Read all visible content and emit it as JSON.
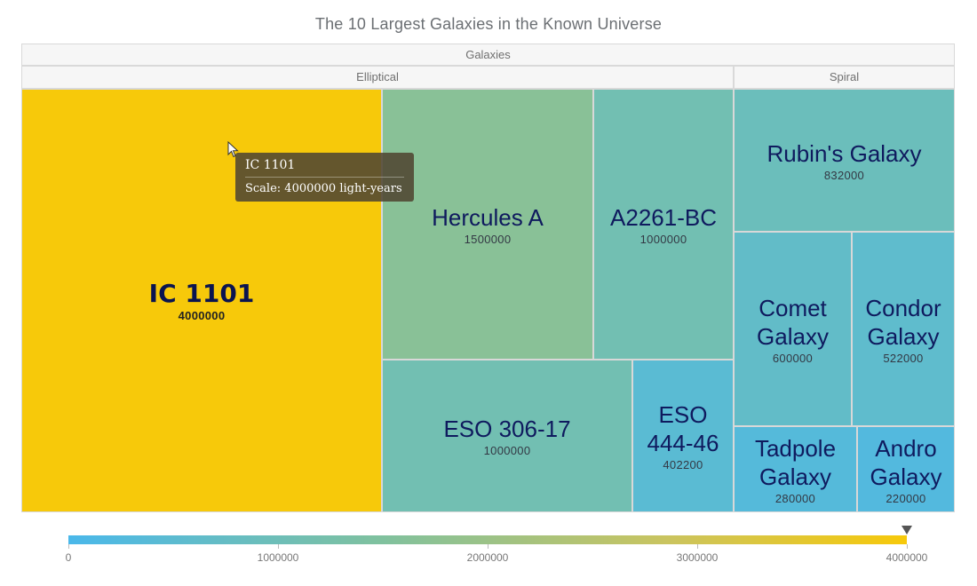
{
  "chart_data": {
    "type": "treemap",
    "title": "The 10 Largest Galaxies in the Known Universe",
    "root": "Galaxies",
    "groups": [
      {
        "name": "Elliptical",
        "items": [
          {
            "name": "IC 1101",
            "value": 4000000
          },
          {
            "name": "Hercules A",
            "value": 1500000
          },
          {
            "name": "A2261-BC",
            "value": 1000000
          },
          {
            "name": "ESO 306-17",
            "value": 1000000
          },
          {
            "name": "ESO 444-46",
            "value": 402200
          }
        ]
      },
      {
        "name": "Spiral",
        "items": [
          {
            "name": "Rubin's Galaxy",
            "value": 832000
          },
          {
            "name": "Comet Galaxy",
            "value": 600000
          },
          {
            "name": "Condor Galaxy",
            "value": 522000
          },
          {
            "name": "Tadpole Galaxy",
            "value": 280000
          },
          {
            "name": "Andro Galaxy",
            "value": 220000
          }
        ]
      }
    ],
    "colorscale": {
      "min": 0,
      "max": 4000000,
      "colors": [
        "#4ab8ea",
        "#7fc19f",
        "#cbc45e",
        "#f7c90a"
      ],
      "ticks": [
        "0",
        "1000000",
        "2000000",
        "3000000",
        "4000000"
      ]
    },
    "tooltip": {
      "title": "IC 1101",
      "body": "Scale: 4000000 light-years"
    },
    "selected": "IC 1101"
  }
}
